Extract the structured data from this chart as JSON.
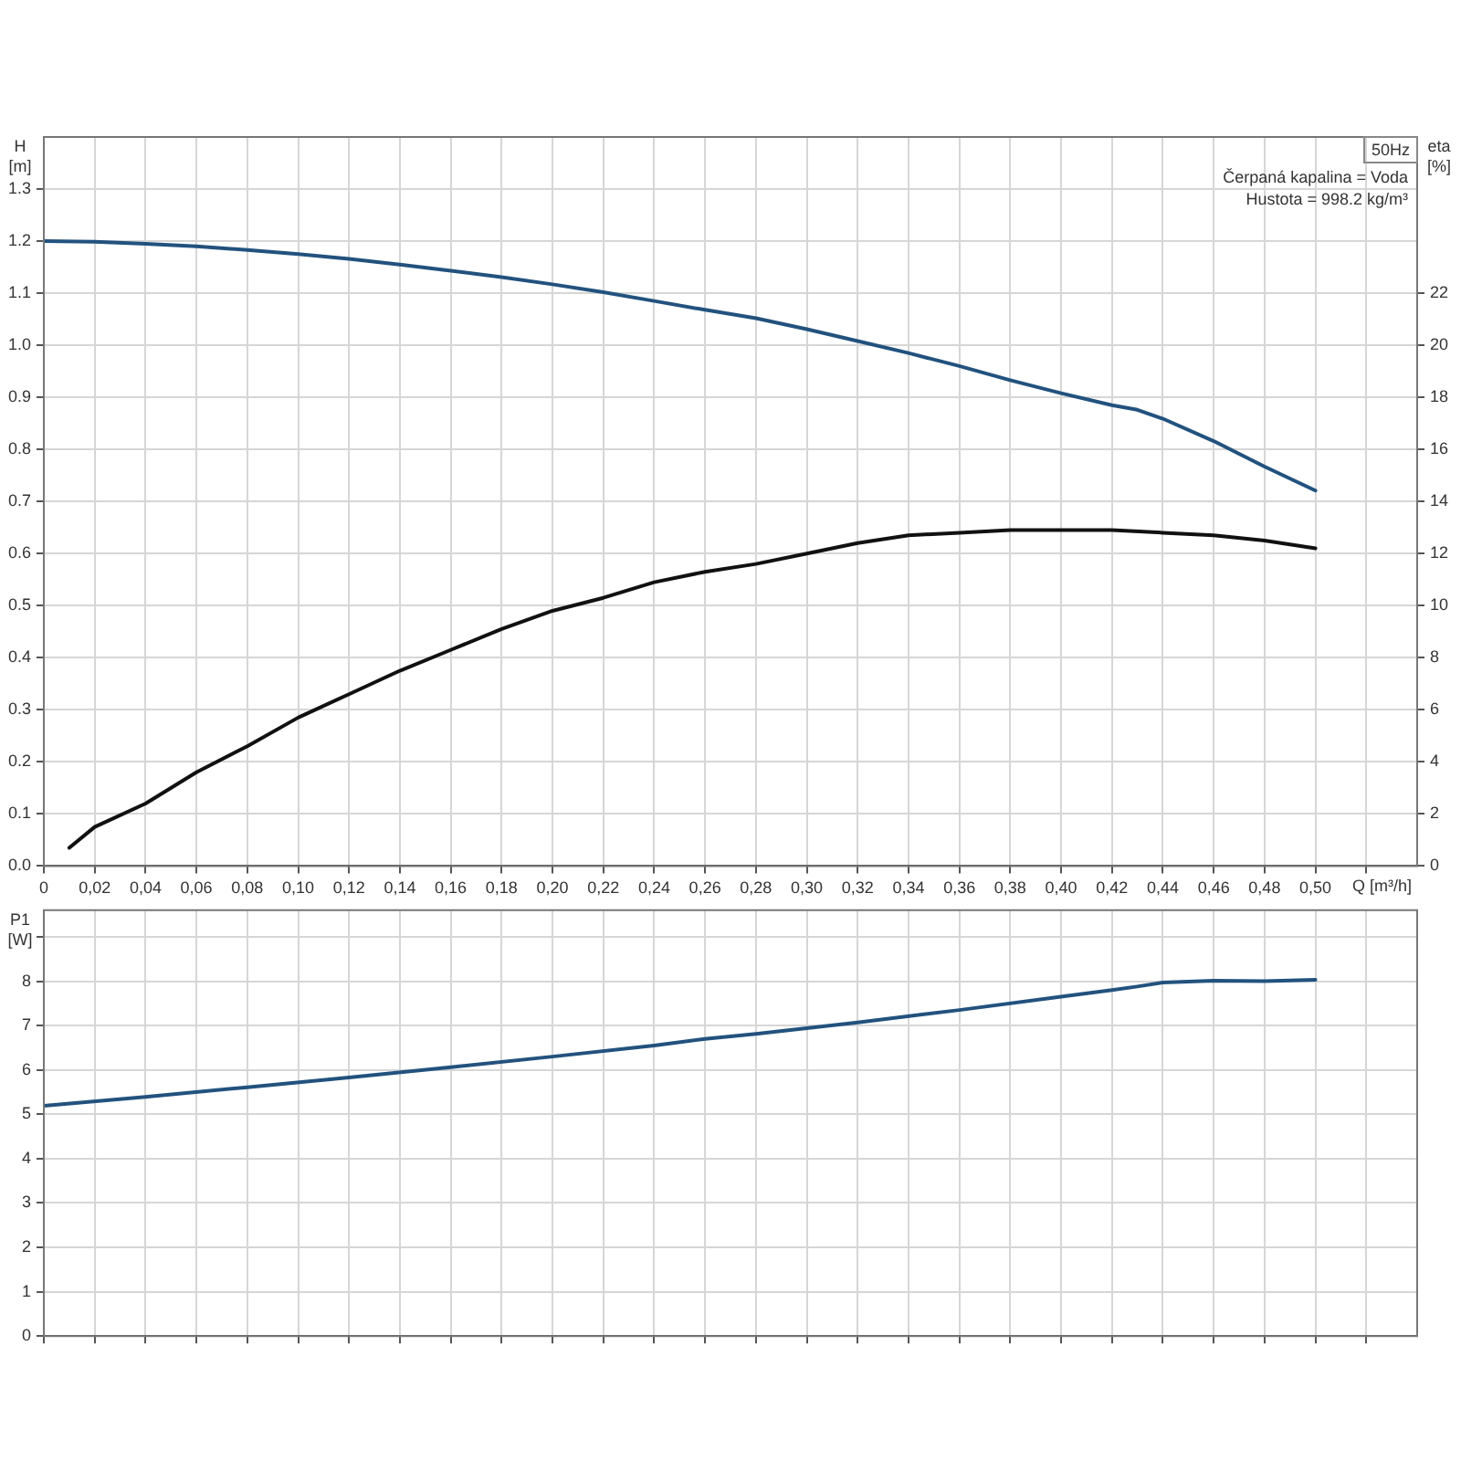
{
  "chart_data": [
    {
      "type": "line",
      "ylabel": "H [m]",
      "y2label": "eta [%]",
      "xlabel": "Q [m³/h]",
      "annotations": [
        "50Hz",
        "Čerpaná kapalina = Voda",
        "Hustota = 998.2 kg/m³"
      ],
      "xlim": [
        0,
        0.54
      ],
      "xticks": [
        {
          "value": 0,
          "label": "0"
        },
        {
          "value": 0.02,
          "label": "0,02"
        },
        {
          "value": 0.04,
          "label": "0,04"
        },
        {
          "value": 0.06,
          "label": "0,06"
        },
        {
          "value": 0.08,
          "label": "0,08"
        },
        {
          "value": 0.1,
          "label": "0,10"
        },
        {
          "value": 0.12,
          "label": "0,12"
        },
        {
          "value": 0.14,
          "label": "0,14"
        },
        {
          "value": 0.16,
          "label": "0,16"
        },
        {
          "value": 0.18,
          "label": "0,18"
        },
        {
          "value": 0.2,
          "label": "0,20"
        },
        {
          "value": 0.22,
          "label": "0,22"
        },
        {
          "value": 0.24,
          "label": "0,24"
        },
        {
          "value": 0.26,
          "label": "0,26"
        },
        {
          "value": 0.28,
          "label": "0,28"
        },
        {
          "value": 0.3,
          "label": "0,30"
        },
        {
          "value": 0.32,
          "label": "0,32"
        },
        {
          "value": 0.34,
          "label": "0,34"
        },
        {
          "value": 0.36,
          "label": "0,36"
        },
        {
          "value": 0.38,
          "label": "0,38"
        },
        {
          "value": 0.4,
          "label": "0,40"
        },
        {
          "value": 0.42,
          "label": "0,42"
        },
        {
          "value": 0.44,
          "label": "0,44"
        },
        {
          "value": 0.46,
          "label": "0,46"
        },
        {
          "value": 0.48,
          "label": "0,48"
        },
        {
          "value": 0.5,
          "label": "0,50"
        },
        {
          "value": 0.52,
          "label": null
        }
      ],
      "ylim": [
        0,
        1.4
      ],
      "yticks": [
        {
          "value": 0,
          "label": "0.0"
        },
        0.1,
        0.2,
        0.3,
        0.4,
        0.5,
        0.6,
        0.7,
        0.8,
        0.9,
        {
          "value": 1,
          "label": "1.0"
        },
        1.1,
        1.2,
        1.3
      ],
      "y2lim": [
        0,
        28
      ],
      "y2ticks": [
        0,
        2,
        4,
        6,
        8,
        10,
        12,
        14,
        16,
        18,
        20,
        22
      ],
      "grid": true,
      "series": [
        {
          "color": "#22527e",
          "x": [
            0,
            0.02,
            0.04,
            0.06,
            0.08,
            0.1,
            0.12,
            0.14,
            0.16,
            0.18,
            0.2,
            0.22,
            0.24,
            0.26,
            0.28,
            0.3,
            0.32,
            0.34,
            0.36,
            0.38,
            0.4,
            0.42,
            0.43,
            0.44,
            0.46,
            0.48,
            0.5
          ],
          "values": [
            1.2,
            1.199,
            1.195,
            1.19,
            1.183,
            1.175,
            1.166,
            1.155,
            1.143,
            1.131,
            1.117,
            1.102,
            1.085,
            1.068,
            1.052,
            1.031,
            1.008,
            0.985,
            0.96,
            0.933,
            0.908,
            0.885,
            0.876,
            0.859,
            0.816,
            0.767,
            0.721
          ]
        },
        {
          "color": "#111111",
          "axis": "y2",
          "x": [
            0.01,
            0.02,
            0.04,
            0.06,
            0.08,
            0.1,
            0.12,
            0.14,
            0.16,
            0.18,
            0.2,
            0.22,
            0.24,
            0.26,
            0.28,
            0.3,
            0.32,
            0.34,
            0.36,
            0.38,
            0.4,
            0.42,
            0.44,
            0.46,
            0.48,
            0.5
          ],
          "values": [
            0.7,
            1.5,
            2.4,
            3.6,
            4.6,
            5.7,
            6.6,
            7.5,
            8.3,
            9.1,
            9.8,
            10.3,
            10.9,
            11.3,
            11.6,
            12.0,
            12.4,
            12.7,
            12.8,
            12.9,
            12.9,
            12.9,
            12.8,
            12.7,
            12.5,
            12.2
          ]
        }
      ]
    },
    {
      "type": "line",
      "ylabel": "P1 [W]",
      "tick_labels": "y",
      "xlim": [
        0,
        0.54
      ],
      "xticks": [
        0,
        0.02,
        0.04,
        0.06,
        0.08,
        0.1,
        0.12,
        0.14,
        0.16,
        0.18,
        0.2,
        0.22,
        0.24,
        0.26,
        0.28,
        0.3,
        0.32,
        0.34,
        0.36,
        0.38,
        0.4,
        0.42,
        0.44,
        0.46,
        0.48,
        0.5,
        0.52
      ],
      "ylim": [
        0,
        9.6
      ],
      "yticks": [
        0,
        1,
        2,
        3,
        4,
        5,
        6,
        7,
        8,
        {
          "value": 9,
          "label": null
        }
      ],
      "grid": true,
      "series": [
        {
          "color": "#22527e",
          "x": [
            0,
            0.04,
            0.08,
            0.12,
            0.16,
            0.2,
            0.24,
            0.26,
            0.28,
            0.32,
            0.36,
            0.4,
            0.42,
            0.43,
            0.44,
            0.46,
            0.48,
            0.5
          ],
          "values": [
            5.19,
            5.39,
            5.61,
            5.83,
            6.06,
            6.3,
            6.55,
            6.7,
            6.81,
            7.07,
            7.35,
            7.65,
            7.8,
            7.88,
            7.97,
            8.01,
            8.0,
            8.03
          ]
        }
      ]
    }
  ]
}
